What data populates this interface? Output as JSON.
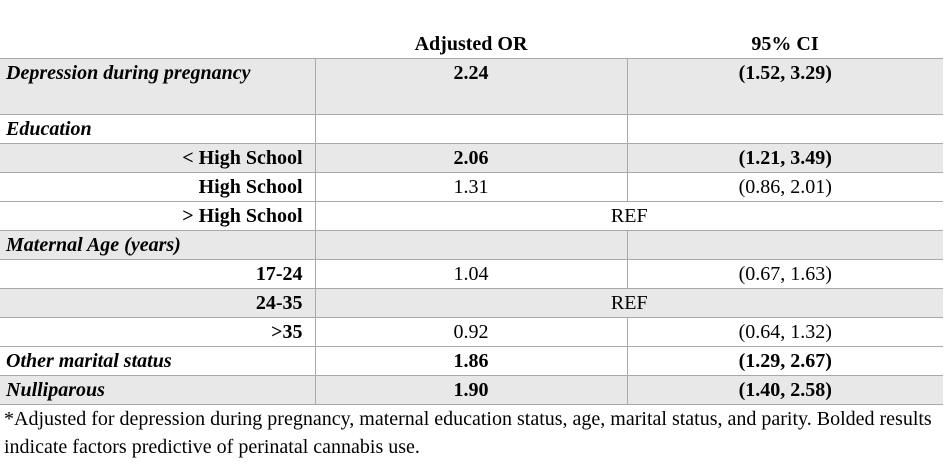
{
  "table": {
    "headers": [
      "",
      "Adjusted OR",
      "95% CI"
    ],
    "rows": [
      {
        "label": "Depression during pregnancy",
        "or": "2.24",
        "ci": "(1.52, 3.29)"
      },
      {
        "label": "Education",
        "or": "",
        "ci": ""
      },
      {
        "label": "< High School",
        "or": "2.06",
        "ci": "(1.21, 3.49)"
      },
      {
        "label": "High School",
        "or": "1.31",
        "ci": "(0.86, 2.01)"
      },
      {
        "label": "> High School",
        "ref": "REF"
      },
      {
        "label": "Maternal Age (years)",
        "or": "",
        "ci": ""
      },
      {
        "label": "17-24",
        "or": "1.04",
        "ci": "(0.67, 1.63)"
      },
      {
        "label": "24-35",
        "ref": "REF"
      },
      {
        "label": ">35",
        "or": "0.92",
        "ci": "(0.64, 1.32)"
      },
      {
        "label": "Other marital status",
        "or": "1.86",
        "ci": "(1.29, 2.67)"
      },
      {
        "label": "Nulliparous",
        "or": "1.90",
        "ci": "(1.40, 2.58)"
      }
    ]
  },
  "footnote": "*Adjusted for depression during pregnancy, maternal education status, age, marital status, and parity. Bolded results indicate factors predictive of perinatal cannabis use."
}
